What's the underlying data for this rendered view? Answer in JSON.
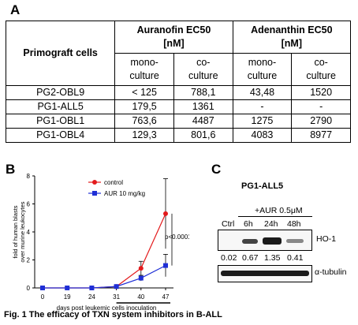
{
  "panels": {
    "a": "A",
    "b": "B",
    "c": "C"
  },
  "table": {
    "row_header": "Primograft cells",
    "drug1": "Auranofin EC50",
    "drug1_unit": "[nM]",
    "drug2": "Adenanthin EC50",
    "drug2_unit": "[nM]",
    "sub": [
      [
        "mono-",
        "culture"
      ],
      [
        "co-",
        "culture"
      ],
      [
        "mono-",
        "culture"
      ],
      [
        "co-",
        "culture"
      ]
    ],
    "rows": [
      [
        "PG2-OBL9",
        "< 125",
        "788,1",
        "43,48",
        "1520"
      ],
      [
        "PG1-ALL5",
        "179,5",
        "1361",
        "-",
        "-"
      ],
      [
        "PG1-OBL1",
        "763,6",
        "4487",
        "1275",
        "2790"
      ],
      [
        "PG1-OBL4",
        "129,3",
        "801,6",
        "4083",
        "8977"
      ]
    ]
  },
  "chart_data": {
    "type": "line",
    "x": [
      0,
      19,
      24,
      31,
      40,
      47
    ],
    "xlabel": "days post leukemic cells inoculation",
    "ylabel": "fold of human blasts over murine leukocytes",
    "ylim": [
      0,
      8
    ],
    "yticks": [
      0,
      2,
      4,
      6,
      8
    ],
    "series": [
      {
        "name": "control",
        "color": "#e31a1c",
        "marker": "circle",
        "values": [
          0,
          0,
          0,
          0.1,
          1.4,
          5.3
        ],
        "err": [
          0,
          0,
          0,
          0.05,
          0.5,
          2.5
        ]
      },
      {
        "name": "AUR 10 mg/kg",
        "color": "#1f2fd6",
        "marker": "square",
        "values": [
          0,
          0,
          0,
          0.1,
          0.7,
          1.6
        ],
        "err": [
          0,
          0,
          0,
          0.05,
          0.2,
          0.8
        ]
      }
    ],
    "annotation": "p<0.0001",
    "legend": "top-left"
  },
  "blot": {
    "title": "PG1-ALL5",
    "treatment": "+AUR 0.5μM",
    "lanes": [
      "Ctrl",
      "6h",
      "24h",
      "48h"
    ],
    "protein1": "HO-1",
    "protein2": "α-tubulin",
    "quant": [
      "0.02",
      "0.67",
      "1.35",
      "0.41"
    ]
  },
  "caption": "Fig. 1 The efficacy of TXN system  inhibitors in B-ALL"
}
